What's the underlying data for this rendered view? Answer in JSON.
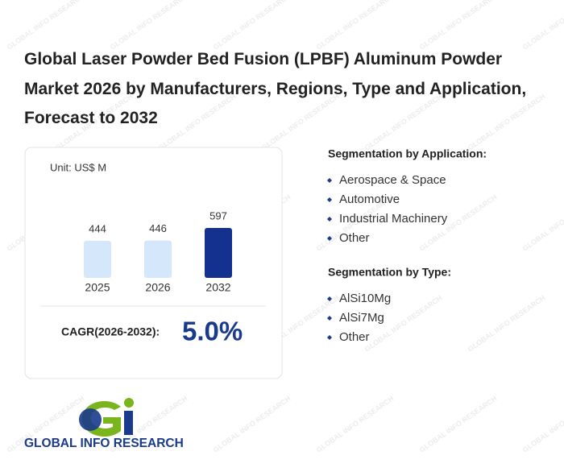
{
  "title": "Global Laser Powder Bed Fusion (LPBF) Aluminum Powder Market 2026 by Manufacturers, Regions, Type and Application, Forecast to 2032",
  "chart_data": {
    "type": "bar",
    "unit": "Unit: US$ M",
    "categories": [
      "2025",
      "2026",
      "2032"
    ],
    "values": [
      444,
      446,
      597
    ],
    "colors": [
      "#d5e7fa",
      "#d5e7fa",
      "#14318f"
    ]
  },
  "cagr": {
    "label": "CAGR(2026-2032):",
    "value": "5.0%"
  },
  "segments": [
    {
      "heading": "Segmentation by Application:",
      "items": [
        "Aerospace & Space",
        "Automotive",
        "Industrial Machinery",
        "Other"
      ]
    },
    {
      "heading": "Segmentation by Type:",
      "items": [
        "AlSi10Mg",
        "AlSi7Mg",
        "Other"
      ]
    }
  ],
  "logo_text": "GLOBAL INFO RESEARCH",
  "watermark": "GLOBAL INFO RESEARCH"
}
